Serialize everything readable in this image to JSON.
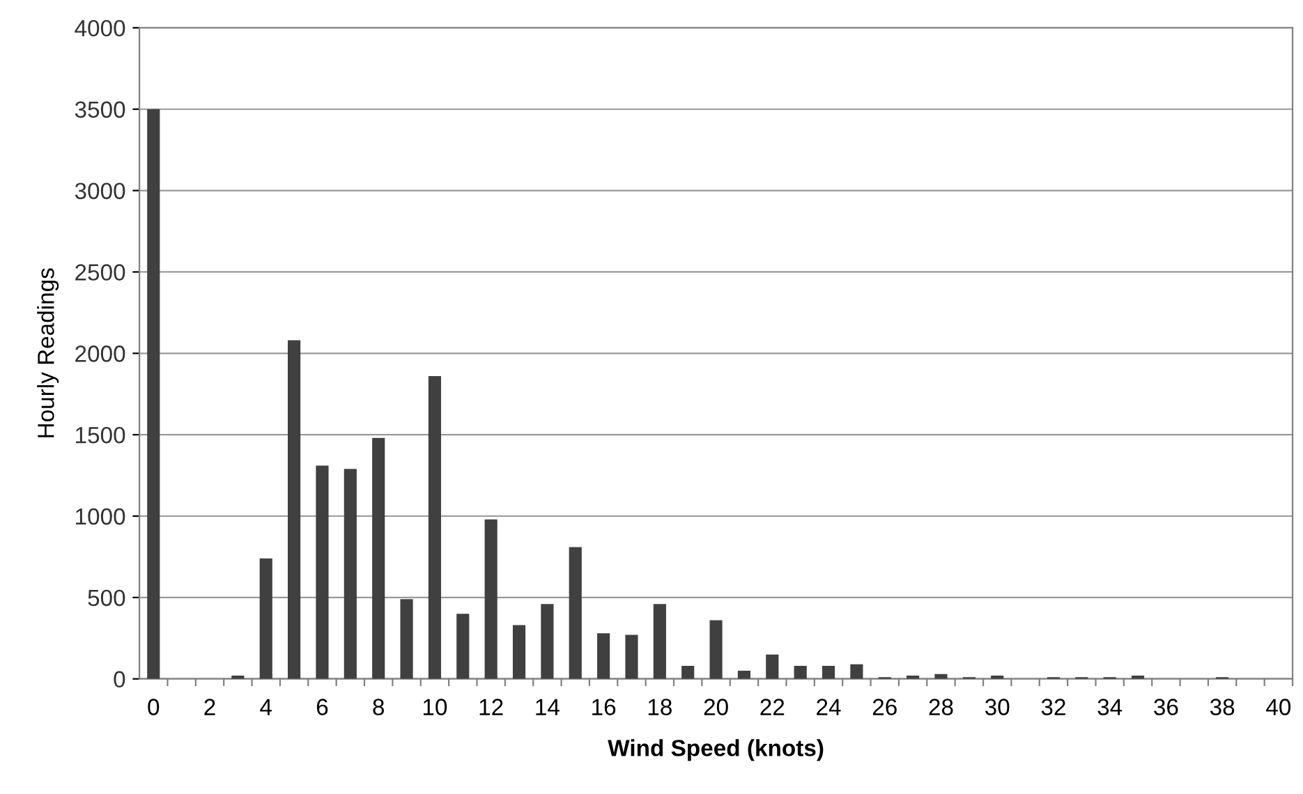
{
  "chart_data": {
    "type": "bar",
    "xlabel": "Wind Speed (knots)",
    "ylabel": "Hourly Readings",
    "categories": [
      "0",
      null,
      "2",
      null,
      "4",
      null,
      "6",
      null,
      "8",
      null,
      "10",
      null,
      "12",
      null,
      "14",
      null,
      "16",
      null,
      "18",
      null,
      "20",
      null,
      "22",
      null,
      "24",
      null,
      "26",
      null,
      "28",
      null,
      "30",
      null,
      "32",
      null,
      "34",
      null,
      "36",
      null,
      "38",
      null,
      "40"
    ],
    "values": [
      3500,
      0,
      0,
      20,
      740,
      2080,
      1310,
      1290,
      1480,
      490,
      1860,
      400,
      980,
      330,
      460,
      810,
      280,
      270,
      460,
      80,
      360,
      50,
      150,
      80,
      80,
      90,
      10,
      20,
      30,
      10,
      20,
      0,
      10,
      10,
      10,
      20,
      0,
      0,
      10,
      0,
      0
    ],
    "color": "#404040",
    "ylim": [
      0,
      4000
    ],
    "yticks": [
      0,
      500,
      1000,
      1500,
      2000,
      2500,
      3000,
      3500,
      4000
    ],
    "grid": "y",
    "legend": false
  }
}
